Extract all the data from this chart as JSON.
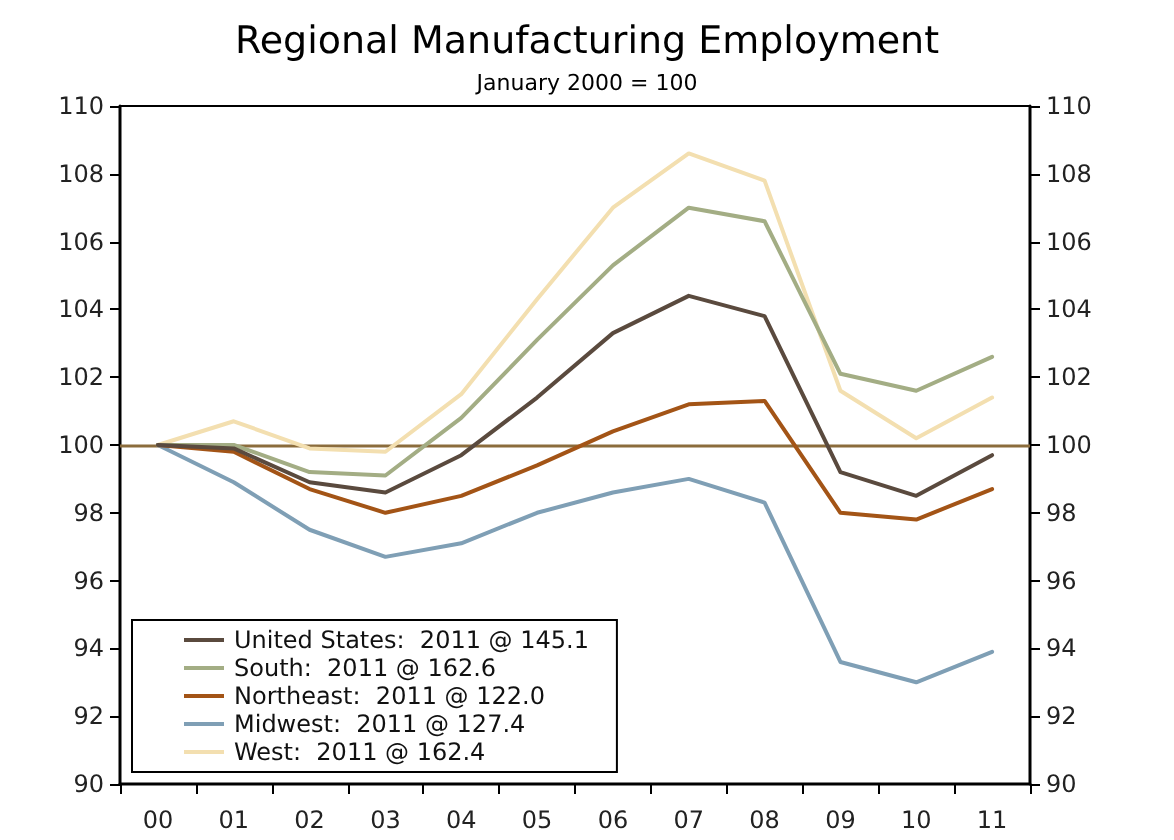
{
  "chart_data": {
    "type": "line",
    "title": "Regional Manufacturing Employment",
    "subtitle": "January 2000 = 100",
    "categories": [
      "00",
      "01",
      "02",
      "03",
      "04",
      "05",
      "06",
      "07",
      "08",
      "09",
      "10",
      "11"
    ],
    "series": [
      {
        "name": "United States:  2011 @ 145.1",
        "color": "#5a4a3e",
        "values": [
          100,
          99.9,
          98.9,
          98.6,
          99.7,
          101.4,
          103.3,
          104.4,
          103.8,
          99.2,
          98.5,
          99.7
        ]
      },
      {
        "name": "South:  2011 @ 162.6",
        "color": "#a3ad84",
        "values": [
          100,
          100.0,
          99.2,
          99.1,
          100.8,
          103.1,
          105.3,
          107.0,
          106.6,
          102.1,
          101.6,
          102.6
        ]
      },
      {
        "name": "Northeast:  2011 @ 122.0",
        "color": "#a35416",
        "values": [
          100,
          99.8,
          98.7,
          98.0,
          98.5,
          99.4,
          100.4,
          101.2,
          101.3,
          98.0,
          97.8,
          98.7
        ]
      },
      {
        "name": "Midwest:  2011 @ 127.4",
        "color": "#7f9fb5",
        "values": [
          100,
          98.9,
          97.5,
          96.7,
          97.1,
          98.0,
          98.6,
          99.0,
          98.3,
          93.6,
          93.0,
          93.9
        ]
      },
      {
        "name": "West:  2011 @ 162.4",
        "color": "#f3dfb0",
        "values": [
          100,
          100.7,
          99.9,
          99.8,
          101.5,
          104.3,
          107.0,
          108.6,
          107.8,
          101.6,
          100.2,
          101.4
        ]
      }
    ],
    "ylim": [
      90,
      110
    ],
    "yticks": [
      90,
      92,
      94,
      96,
      98,
      100,
      102,
      104,
      106,
      108,
      110
    ],
    "y2lim": [
      90,
      110
    ],
    "y2ticks": [
      90,
      92,
      94,
      96,
      98,
      100,
      102,
      104,
      106,
      108,
      110
    ],
    "ref_lines": [
      {
        "axis": "y",
        "value": 100,
        "color": "#8b6c3c"
      }
    ],
    "legend": "bottom left",
    "grid": false,
    "marker": "none",
    "line_style": "solid"
  }
}
